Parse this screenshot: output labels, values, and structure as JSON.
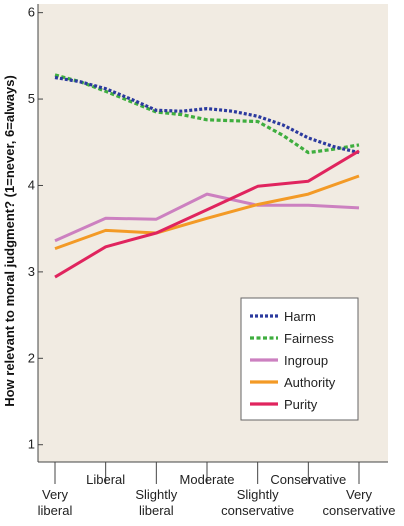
{
  "chart_data": {
    "type": "line",
    "ylabel": "How relevant to moral judgment? (1=never, 6=always)",
    "ylim": [
      0.8,
      6.1
    ],
    "yticks": [
      1,
      2,
      3,
      4,
      5,
      6
    ],
    "x_points": 7,
    "x_labels": [
      {
        "pos": 0,
        "lines": [
          "Very",
          "liberal"
        ],
        "row": "bottom"
      },
      {
        "pos": 1,
        "lines": [
          "Liberal"
        ],
        "row": "top"
      },
      {
        "pos": 2,
        "lines": [
          "Slightly",
          "liberal"
        ],
        "row": "bottom"
      },
      {
        "pos": 3,
        "lines": [
          "Moderate"
        ],
        "row": "top"
      },
      {
        "pos": 4,
        "lines": [
          "Slightly",
          "conservative"
        ],
        "row": "bottom"
      },
      {
        "pos": 5,
        "lines": [
          "Conservative"
        ],
        "row": "top"
      },
      {
        "pos": 6,
        "lines": [
          "Very",
          "conservative"
        ],
        "row": "bottom"
      }
    ],
    "grid": false,
    "legend_position": "bottom-right",
    "background_color": "#f1ebe2",
    "series": [
      {
        "name": "Harm",
        "color": "#2b3a9e",
        "dash": "dotted",
        "x": [
          0,
          0.5,
          1,
          1.5,
          2,
          2.5,
          3,
          3.5,
          4,
          4.5,
          5,
          5.5,
          6
        ],
        "values": [
          5.25,
          5.2,
          5.12,
          5.0,
          4.87,
          4.86,
          4.89,
          4.86,
          4.8,
          4.7,
          4.55,
          4.45,
          4.38
        ]
      },
      {
        "name": "Fairness",
        "color": "#3fae3f",
        "dash": "dashed",
        "x": [
          0,
          0.5,
          1,
          1.5,
          2,
          2.5,
          3,
          3.5,
          4,
          4.5,
          5,
          5.5,
          6
        ],
        "values": [
          5.28,
          5.2,
          5.09,
          4.97,
          4.85,
          4.82,
          4.76,
          4.75,
          4.74,
          4.58,
          4.38,
          4.42,
          4.47
        ]
      },
      {
        "name": "Ingroup",
        "color": "#cc80c0",
        "dash": "solid",
        "x": [
          0,
          1,
          2,
          3,
          4,
          5,
          6
        ],
        "values": [
          3.36,
          3.62,
          3.61,
          3.9,
          3.77,
          3.77,
          3.74
        ]
      },
      {
        "name": "Authority",
        "color": "#f39a26",
        "dash": "solid",
        "x": [
          0,
          1,
          2,
          3,
          4,
          5,
          6
        ],
        "values": [
          3.27,
          3.48,
          3.45,
          3.62,
          3.78,
          3.9,
          4.11
        ]
      },
      {
        "name": "Purity",
        "color": "#e0245e",
        "dash": "solid",
        "x": [
          0,
          1,
          2,
          3,
          4,
          5,
          6
        ],
        "values": [
          2.94,
          3.29,
          3.45,
          3.72,
          3.99,
          4.05,
          4.4
        ]
      }
    ]
  }
}
